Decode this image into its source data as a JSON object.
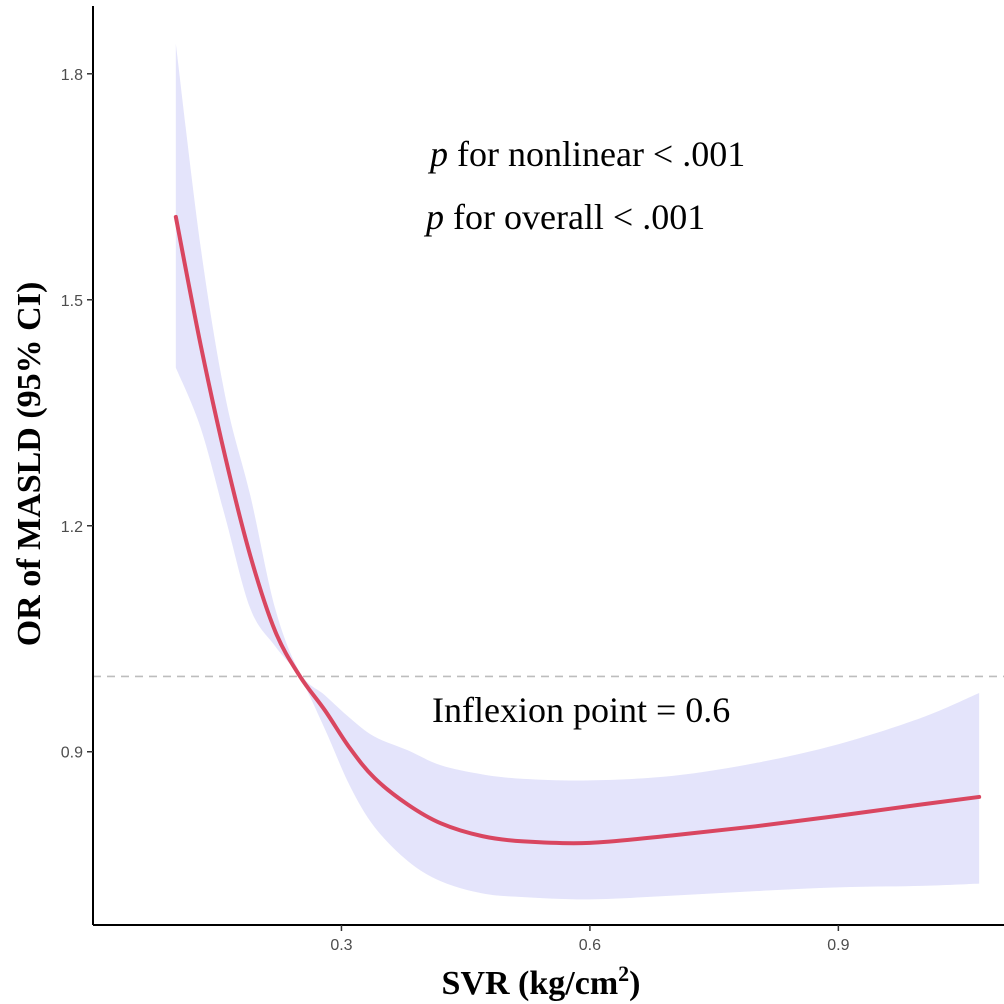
{
  "chart_data": {
    "type": "line",
    "xlabel": "SVR (kg/cm",
    "xlabel_superscript": "2",
    "xlabel_close": ")",
    "ylabel": "OR of MASLD (95% CI)",
    "x_ticks": [
      0.3,
      0.6,
      0.9
    ],
    "x_tick_labels": [
      "0.3",
      "0.6",
      "0.9"
    ],
    "y_ticks": [
      0.9,
      1.2,
      1.5,
      1.8
    ],
    "y_tick_labels": [
      "0.9",
      "1.2",
      "1.5",
      "1.8"
    ],
    "xlim": [
      0.0,
      1.1
    ],
    "ylim": [
      0.67,
      1.89
    ],
    "reference_line": {
      "y": 1.0,
      "style": "dashed",
      "color": "#bdbdbd"
    },
    "grid": false,
    "series": [
      {
        "color": "#d94660",
        "band_color": "#e4e4fb",
        "x": [
          0.1,
          0.13,
          0.16,
          0.19,
          0.22,
          0.25,
          0.28,
          0.31,
          0.34,
          0.38,
          0.42,
          0.47,
          0.52,
          0.6,
          0.7,
          0.8,
          0.9,
          1.0,
          1.07
        ],
        "y": [
          1.61,
          1.44,
          1.29,
          1.16,
          1.06,
          1.0,
          0.955,
          0.905,
          0.865,
          0.83,
          0.805,
          0.788,
          0.781,
          0.779,
          0.789,
          0.801,
          0.815,
          0.83,
          0.84
        ],
        "lower": [
          1.41,
          1.33,
          1.21,
          1.09,
          1.04,
          0.998,
          0.93,
          0.855,
          0.8,
          0.755,
          0.728,
          0.712,
          0.707,
          0.704,
          0.709,
          0.715,
          0.72,
          0.722,
          0.725
        ],
        "upper": [
          1.84,
          1.57,
          1.37,
          1.24,
          1.09,
          1.005,
          0.975,
          0.945,
          0.92,
          0.902,
          0.882,
          0.87,
          0.864,
          0.862,
          0.868,
          0.885,
          0.91,
          0.945,
          0.978
        ]
      }
    ]
  },
  "annotations": {
    "p_nonlinear_p": "p",
    "p_nonlinear_rest": " for nonlinear < .001",
    "p_overall_p": "p",
    "p_overall_rest": " for overall < .001",
    "inflexion": "Inflexion point = 0.6"
  }
}
